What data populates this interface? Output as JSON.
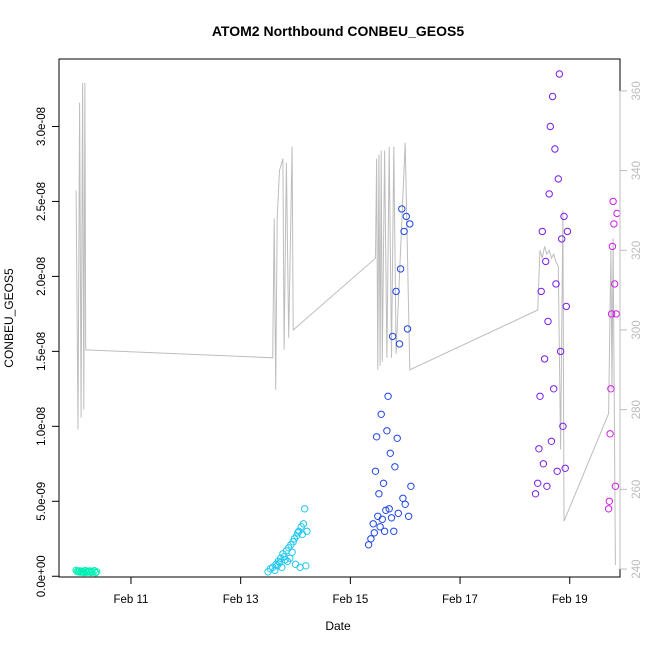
{
  "chart_data": {
    "type": "scatter",
    "title": "ATOM2 Northbound CONBEU_GEOS5",
    "xlabel": "Date",
    "ylabel": "CONBEU_GEOS5",
    "xlim": [
      "2017-02-09T16:30",
      "2017-02-19T22:00"
    ],
    "ylim": [
      -5e-11,
      3.45e-08
    ],
    "x_ticks": [
      {
        "date": "2017-02-11",
        "label": "Feb 11"
      },
      {
        "date": "2017-02-13",
        "label": "Feb 13"
      },
      {
        "date": "2017-02-15",
        "label": "Feb 15"
      },
      {
        "date": "2017-02-17",
        "label": "Feb 17"
      },
      {
        "date": "2017-02-19",
        "label": "Feb 19"
      }
    ],
    "y_ticks": [
      {
        "value": 0,
        "label": "0.0e+00"
      },
      {
        "value": 5e-09,
        "label": "5.0e-09"
      },
      {
        "value": 1e-08,
        "label": "1.0e-08"
      },
      {
        "value": 1.5e-08,
        "label": "1.5e-08"
      },
      {
        "value": 2e-08,
        "label": "2.0e-08"
      },
      {
        "value": 2.5e-08,
        "label": "2.5e-08"
      },
      {
        "value": 3e-08,
        "label": "3.0e-08"
      }
    ],
    "secondary_axis": {
      "side": "right",
      "color": "#bdbdbd",
      "ylim": [
        238,
        368
      ],
      "ticks": [
        240,
        260,
        280,
        300,
        320,
        340,
        360
      ]
    },
    "grid": false,
    "legend": "none",
    "marker": "open-circle",
    "series": [
      {
        "color": "#00f0b4",
        "points": [
          [
            "2017-02-10T00:00",
            4e-10
          ],
          [
            "2017-02-10T00:30",
            3.2e-10
          ],
          [
            "2017-02-10T01:00",
            3e-10
          ],
          [
            "2017-02-10T01:30",
            3.6e-10
          ],
          [
            "2017-02-10T02:00",
            2.8e-10
          ],
          [
            "2017-02-10T02:30",
            3.4e-10
          ],
          [
            "2017-02-10T03:00",
            3.1e-10
          ],
          [
            "2017-02-10T03:30",
            2.5e-10
          ],
          [
            "2017-02-10T04:00",
            3.8e-10
          ],
          [
            "2017-02-10T04:30",
            2.7e-10
          ],
          [
            "2017-02-10T05:00",
            3.3e-10
          ],
          [
            "2017-02-10T05:30",
            2.9e-10
          ],
          [
            "2017-02-10T06:00",
            3.5e-10
          ],
          [
            "2017-02-10T06:30",
            2.6e-10
          ],
          [
            "2017-02-10T07:00",
            3.2e-10
          ],
          [
            "2017-02-10T08:00",
            3.7e-10
          ],
          [
            "2017-02-10T08:30",
            2.4e-10
          ],
          [
            "2017-02-10T09:00",
            3e-10
          ]
        ]
      },
      {
        "color": "#22c8f0",
        "points": [
          [
            "2017-02-13T12:00",
            3e-10
          ],
          [
            "2017-02-13T13:00",
            5e-10
          ],
          [
            "2017-02-13T14:00",
            6e-10
          ],
          [
            "2017-02-13T15:00",
            4e-10
          ],
          [
            "2017-02-13T15:30",
            8e-10
          ],
          [
            "2017-02-13T16:00",
            7e-10
          ],
          [
            "2017-02-13T16:30",
            1e-09
          ],
          [
            "2017-02-13T17:00",
            9e-10
          ],
          [
            "2017-02-13T17:30",
            1.2e-09
          ],
          [
            "2017-02-13T18:00",
            6e-10
          ],
          [
            "2017-02-13T18:30",
            1.5e-09
          ],
          [
            "2017-02-13T19:00",
            1.3e-09
          ],
          [
            "2017-02-13T19:30",
            1.1e-09
          ],
          [
            "2017-02-13T20:00",
            1.7e-09
          ],
          [
            "2017-02-13T20:30",
            1e-09
          ],
          [
            "2017-02-13T21:00",
            1.9e-09
          ],
          [
            "2017-02-13T21:30",
            1.2e-09
          ],
          [
            "2017-02-13T22:00",
            2.1e-09
          ],
          [
            "2017-02-13T22:30",
            1.6e-09
          ],
          [
            "2017-02-13T23:00",
            2.3e-09
          ],
          [
            "2017-02-13T23:30",
            2.5e-09
          ],
          [
            "2017-02-14T00:00",
            8e-10
          ],
          [
            "2017-02-14T00:30",
            2.7e-09
          ],
          [
            "2017-02-14T01:00",
            2.9e-09
          ],
          [
            "2017-02-14T01:30",
            3e-09
          ],
          [
            "2017-02-14T02:00",
            6e-10
          ],
          [
            "2017-02-14T02:30",
            3.3e-09
          ],
          [
            "2017-02-14T03:00",
            2.8e-09
          ],
          [
            "2017-02-14T03:30",
            3.5e-09
          ],
          [
            "2017-02-14T04:00",
            4.5e-09
          ],
          [
            "2017-02-14T04:30",
            7e-10
          ],
          [
            "2017-02-14T05:00",
            3e-09
          ]
        ]
      },
      {
        "color": "#1e46e6",
        "points": [
          [
            "2017-02-15T08:00",
            2.1e-09
          ],
          [
            "2017-02-15T09:00",
            2.5e-09
          ],
          [
            "2017-02-15T10:00",
            3.5e-09
          ],
          [
            "2017-02-15T10:30",
            2.9e-09
          ],
          [
            "2017-02-15T11:00",
            7e-09
          ],
          [
            "2017-02-15T11:30",
            9.3e-09
          ],
          [
            "2017-02-15T12:00",
            4e-09
          ],
          [
            "2017-02-15T12:30",
            5.5e-09
          ],
          [
            "2017-02-15T13:00",
            3.3e-09
          ],
          [
            "2017-02-15T13:30",
            1.08e-08
          ],
          [
            "2017-02-15T14:00",
            3.8e-09
          ],
          [
            "2017-02-15T14:30",
            6.2e-09
          ],
          [
            "2017-02-15T15:00",
            3e-09
          ],
          [
            "2017-02-15T15:30",
            4.4e-09
          ],
          [
            "2017-02-15T16:00",
            9.7e-09
          ],
          [
            "2017-02-15T16:30",
            1.2e-08
          ],
          [
            "2017-02-15T17:00",
            4.5e-09
          ],
          [
            "2017-02-15T17:30",
            8.2e-09
          ],
          [
            "2017-02-15T18:00",
            3.9e-09
          ],
          [
            "2017-02-15T18:30",
            1.6e-08
          ],
          [
            "2017-02-15T19:00",
            3e-09
          ],
          [
            "2017-02-15T19:30",
            7.3e-09
          ],
          [
            "2017-02-15T20:00",
            1.9e-08
          ],
          [
            "2017-02-15T20:30",
            9.2e-09
          ],
          [
            "2017-02-15T21:00",
            4.2e-09
          ],
          [
            "2017-02-15T21:30",
            1.55e-08
          ],
          [
            "2017-02-15T22:00",
            2.05e-08
          ],
          [
            "2017-02-15T22:30",
            2.45e-08
          ],
          [
            "2017-02-15T23:00",
            5.2e-09
          ],
          [
            "2017-02-15T23:30",
            2.3e-08
          ],
          [
            "2017-02-16T00:00",
            4.8e-09
          ],
          [
            "2017-02-16T00:30",
            2.4e-08
          ],
          [
            "2017-02-16T01:00",
            1.65e-08
          ],
          [
            "2017-02-16T01:30",
            4e-09
          ],
          [
            "2017-02-16T02:00",
            2.35e-08
          ],
          [
            "2017-02-16T02:30",
            6e-09
          ]
        ]
      },
      {
        "color": "#7a1ee6",
        "points": [
          [
            "2017-02-18T09:00",
            5.5e-09
          ],
          [
            "2017-02-18T10:00",
            6.2e-09
          ],
          [
            "2017-02-18T10:30",
            8.5e-09
          ],
          [
            "2017-02-18T11:00",
            1.2e-08
          ],
          [
            "2017-02-18T11:30",
            1.9e-08
          ],
          [
            "2017-02-18T12:00",
            2.3e-08
          ],
          [
            "2017-02-18T12:30",
            7.5e-09
          ],
          [
            "2017-02-18T13:00",
            1.45e-08
          ],
          [
            "2017-02-18T13:30",
            2.1e-08
          ],
          [
            "2017-02-18T14:00",
            6e-09
          ],
          [
            "2017-02-18T14:30",
            1.7e-08
          ],
          [
            "2017-02-18T15:00",
            2.55e-08
          ],
          [
            "2017-02-18T15:30",
            3e-08
          ],
          [
            "2017-02-18T16:00",
            9e-09
          ],
          [
            "2017-02-18T16:30",
            3.2e-08
          ],
          [
            "2017-02-18T17:00",
            1.25e-08
          ],
          [
            "2017-02-18T17:30",
            2.85e-08
          ],
          [
            "2017-02-18T18:00",
            1.95e-08
          ],
          [
            "2017-02-18T18:30",
            7e-09
          ],
          [
            "2017-02-18T19:00",
            2.65e-08
          ],
          [
            "2017-02-18T19:30",
            3.35e-08
          ],
          [
            "2017-02-18T20:00",
            1.5e-08
          ],
          [
            "2017-02-18T20:30",
            2.25e-08
          ],
          [
            "2017-02-18T21:00",
            1e-08
          ],
          [
            "2017-02-18T21:30",
            2.4e-08
          ],
          [
            "2017-02-18T22:00",
            7.2e-09
          ],
          [
            "2017-02-18T22:30",
            1.8e-08
          ],
          [
            "2017-02-18T23:00",
            2.3e-08
          ]
        ]
      },
      {
        "color": "#d21ee6",
        "points": [
          [
            "2017-02-19T17:00",
            4.5e-09
          ],
          [
            "2017-02-19T17:20",
            5e-09
          ],
          [
            "2017-02-19T17:40",
            9.5e-09
          ],
          [
            "2017-02-19T18:00",
            1.25e-08
          ],
          [
            "2017-02-19T18:20",
            1.75e-08
          ],
          [
            "2017-02-19T18:40",
            2.2e-08
          ],
          [
            "2017-02-19T19:00",
            2.5e-08
          ],
          [
            "2017-02-19T19:20",
            2.35e-08
          ],
          [
            "2017-02-19T19:40",
            1.95e-08
          ],
          [
            "2017-02-19T20:00",
            6e-09
          ],
          [
            "2017-02-19T20:20",
            1.75e-08
          ],
          [
            "2017-02-19T20:40",
            2.42e-08
          ]
        ]
      }
    ],
    "overlay_line": {
      "color": "#bdbdbd",
      "axis": "right",
      "points": [
        [
          "2017-02-10T00:00",
          335
        ],
        [
          "2017-02-10T00:50",
          275
        ],
        [
          "2017-02-10T01:30",
          357
        ],
        [
          "2017-02-10T02:10",
          278
        ],
        [
          "2017-02-10T02:50",
          362
        ],
        [
          "2017-02-10T03:20",
          280
        ],
        [
          "2017-02-10T03:50",
          362
        ],
        [
          "2017-02-10T04:10",
          295
        ],
        [
          "2017-02-13T14:00",
          293
        ],
        [
          "2017-02-13T14:40",
          328
        ],
        [
          "2017-02-13T15:20",
          285
        ],
        [
          "2017-02-13T16:00",
          328
        ],
        [
          "2017-02-13T17:00",
          340
        ],
        [
          "2017-02-13T18:30",
          343
        ],
        [
          "2017-02-13T19:00",
          295
        ],
        [
          "2017-02-13T20:00",
          342
        ],
        [
          "2017-02-13T21:00",
          298
        ],
        [
          "2017-02-13T22:30",
          346
        ],
        [
          "2017-02-13T23:00",
          300
        ],
        [
          "2017-02-15T11:00",
          318
        ],
        [
          "2017-02-15T11:30",
          343
        ],
        [
          "2017-02-15T12:00",
          290
        ],
        [
          "2017-02-15T12:30",
          344
        ],
        [
          "2017-02-15T13:00",
          291
        ],
        [
          "2017-02-15T13:30",
          345
        ],
        [
          "2017-02-15T14:00",
          292
        ],
        [
          "2017-02-15T15:00",
          345
        ],
        [
          "2017-02-15T16:00",
          293
        ],
        [
          "2017-02-15T17:00",
          346
        ],
        [
          "2017-02-15T18:00",
          293
        ],
        [
          "2017-02-15T19:00",
          346
        ],
        [
          "2017-02-15T20:00",
          294
        ],
        [
          "2017-02-16T00:00",
          347
        ],
        [
          "2017-02-16T02:00",
          290
        ],
        [
          "2017-02-18T10:00",
          305
        ],
        [
          "2017-02-18T11:00",
          320
        ],
        [
          "2017-02-18T12:00",
          318
        ],
        [
          "2017-02-18T13:00",
          321
        ],
        [
          "2017-02-18T14:00",
          319
        ],
        [
          "2017-02-18T15:00",
          320
        ],
        [
          "2017-02-18T16:00",
          318
        ],
        [
          "2017-02-18T17:00",
          319
        ],
        [
          "2017-02-18T18:00",
          317
        ],
        [
          "2017-02-18T19:00",
          316
        ],
        [
          "2017-02-18T20:00",
          270
        ],
        [
          "2017-02-18T21:00",
          330
        ],
        [
          "2017-02-18T21:30",
          252
        ],
        [
          "2017-02-19T17:00",
          279
        ],
        [
          "2017-02-19T18:00",
          320
        ],
        [
          "2017-02-19T18:30",
          285
        ],
        [
          "2017-02-19T19:00",
          323
        ],
        [
          "2017-02-19T20:00",
          241
        ]
      ]
    }
  }
}
